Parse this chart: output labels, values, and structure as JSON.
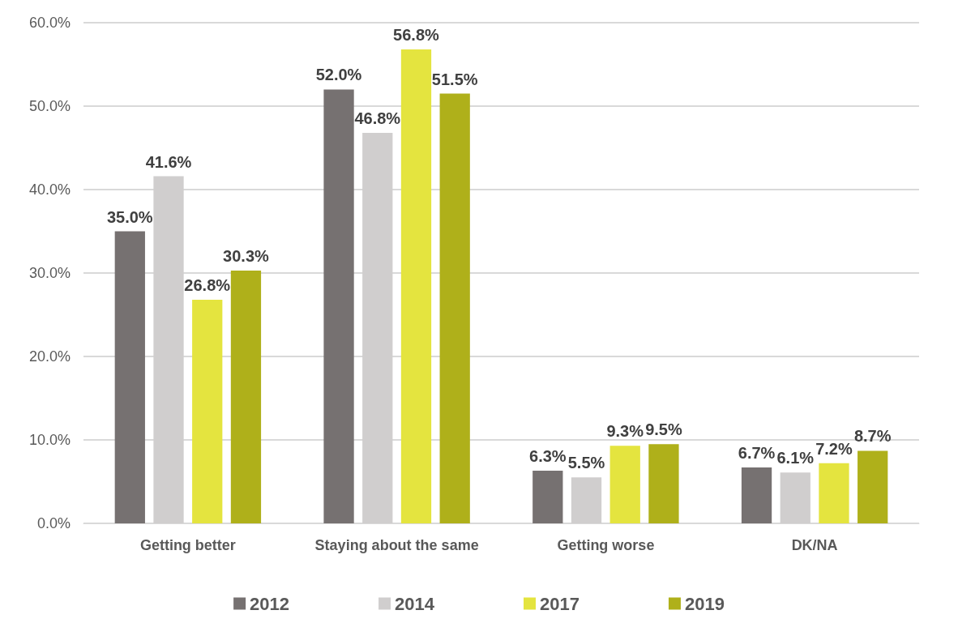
{
  "chart_data": {
    "type": "bar",
    "categories": [
      "Getting better",
      "Staying about the same",
      "Getting worse",
      "DK/NA"
    ],
    "series": [
      {
        "name": "2012",
        "color": "#767171",
        "values": [
          35.0,
          52.0,
          6.3,
          6.7
        ],
        "value_labels": [
          "35.0%",
          "52.0%",
          "6.3%",
          "6.7%"
        ]
      },
      {
        "name": "2014",
        "color": "#d0cece",
        "values": [
          41.6,
          46.8,
          5.5,
          6.1
        ],
        "value_labels": [
          "41.6%",
          "46.8%",
          "5.5%",
          "6.1%"
        ]
      },
      {
        "name": "2017",
        "color": "#e4e43f",
        "values": [
          26.8,
          56.8,
          9.3,
          7.2
        ],
        "value_labels": [
          "26.8%",
          "56.8%",
          "9.3%",
          "7.2%"
        ]
      },
      {
        "name": "2019",
        "color": "#afb01a",
        "values": [
          30.3,
          51.5,
          9.5,
          8.7
        ],
        "value_labels": [
          "30.3%",
          "51.5%",
          "9.5%",
          "8.7%"
        ]
      }
    ],
    "ylim": [
      0,
      60
    ],
    "yticks": [
      {
        "value": 0,
        "label": "0.0%"
      },
      {
        "value": 10,
        "label": "10.0%"
      },
      {
        "value": 20,
        "label": "20.0%"
      },
      {
        "value": 30,
        "label": "30.0%"
      },
      {
        "value": 40,
        "label": "40.0%"
      },
      {
        "value": 50,
        "label": "50.0%"
      },
      {
        "value": 60,
        "label": "60.0%"
      }
    ],
    "grid": "y",
    "legend": "bottom"
  }
}
